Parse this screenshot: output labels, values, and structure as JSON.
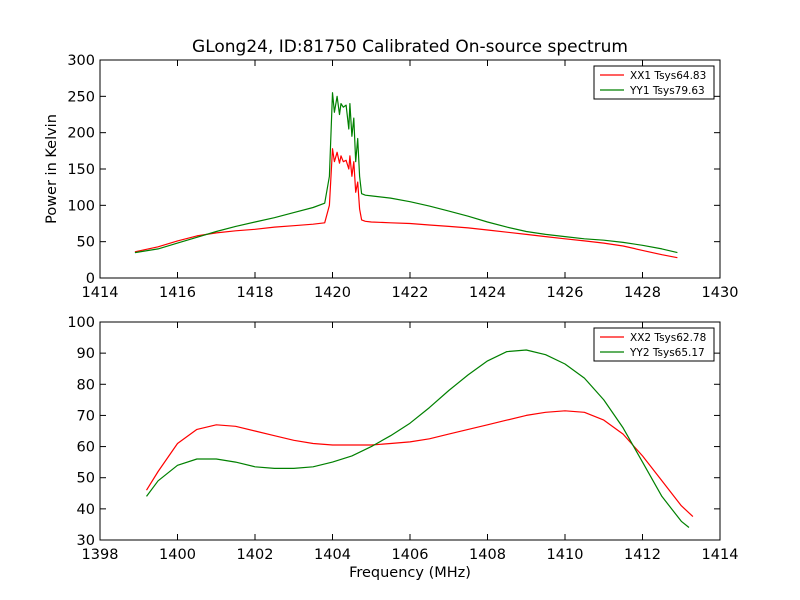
{
  "chart_data": [
    {
      "type": "line",
      "title": "GLong24, ID:81750 Calibrated On-source spectrum",
      "xlabel": "",
      "ylabel": "Power in Kelvin",
      "xlim": [
        1414,
        1430
      ],
      "ylim": [
        0,
        300
      ],
      "xticks": [
        "1414",
        "1416",
        "1418",
        "1420",
        "1422",
        "1424",
        "1426",
        "1428",
        "1430"
      ],
      "yticks": [
        "0",
        "50",
        "100",
        "150",
        "200",
        "250",
        "300"
      ],
      "legend_position": "top-right",
      "series": [
        {
          "name": "XX1 Tsys64.83",
          "color": "#ff0000",
          "x": [
            1414.9,
            1415.5,
            1416,
            1416.5,
            1417,
            1417.5,
            1418,
            1418.5,
            1419,
            1419.5,
            1419.8,
            1419.92,
            1420.0,
            1420.05,
            1420.12,
            1420.18,
            1420.22,
            1420.28,
            1420.35,
            1420.42,
            1420.45,
            1420.5,
            1420.55,
            1420.6,
            1420.65,
            1420.7,
            1420.75,
            1420.85,
            1421,
            1421.5,
            1422,
            1422.5,
            1423,
            1423.5,
            1424,
            1424.5,
            1425,
            1425.5,
            1426,
            1426.5,
            1427,
            1427.5,
            1428,
            1428.5,
            1428.9
          ],
          "y": [
            36,
            43,
            51,
            58,
            62,
            65,
            67,
            70,
            72,
            74,
            76,
            100,
            178,
            160,
            173,
            158,
            168,
            160,
            162,
            150,
            168,
            140,
            160,
            118,
            132,
            95,
            80,
            78,
            77,
            76,
            75,
            73,
            71,
            69,
            66,
            63,
            60,
            57,
            54,
            51,
            48,
            44,
            38,
            32,
            28
          ]
        },
        {
          "name": "YY1 Tsys79.63",
          "color": "#008000",
          "x": [
            1414.9,
            1415.5,
            1416,
            1416.5,
            1417,
            1417.5,
            1418,
            1418.5,
            1419,
            1419.5,
            1419.8,
            1419.92,
            1420.0,
            1420.05,
            1420.12,
            1420.18,
            1420.22,
            1420.28,
            1420.35,
            1420.42,
            1420.45,
            1420.5,
            1420.55,
            1420.6,
            1420.65,
            1420.7,
            1420.75,
            1420.85,
            1421,
            1421.5,
            1422,
            1422.5,
            1423,
            1423.5,
            1424,
            1424.5,
            1425,
            1425.5,
            1426,
            1426.5,
            1427,
            1427.5,
            1428,
            1428.5,
            1428.9
          ],
          "y": [
            35,
            40,
            48,
            56,
            64,
            71,
            77,
            83,
            90,
            97,
            103,
            140,
            255,
            228,
            250,
            225,
            240,
            235,
            238,
            205,
            240,
            195,
            220,
            160,
            192,
            140,
            116,
            114,
            113,
            110,
            105,
            99,
            92,
            85,
            77,
            70,
            64,
            60,
            57,
            54,
            52,
            49,
            45,
            40,
            35
          ]
        }
      ]
    },
    {
      "type": "line",
      "title": "",
      "xlabel": "Frequency (MHz)",
      "ylabel": "",
      "xlim": [
        1398,
        1414
      ],
      "ylim": [
        30,
        100
      ],
      "xticks": [
        "1398",
        "1400",
        "1402",
        "1404",
        "1406",
        "1408",
        "1410",
        "1412",
        "1414"
      ],
      "yticks": [
        "30",
        "40",
        "50",
        "60",
        "70",
        "80",
        "90",
        "100"
      ],
      "legend_position": "top-right",
      "series": [
        {
          "name": "XX2 Tsys62.78",
          "color": "#ff0000",
          "x": [
            1399.2,
            1399.5,
            1400,
            1400.5,
            1401,
            1401.5,
            1402,
            1402.5,
            1403,
            1403.5,
            1404,
            1404.5,
            1405,
            1405.5,
            1406,
            1406.5,
            1407,
            1407.5,
            1408,
            1408.5,
            1409,
            1409.5,
            1410,
            1410.5,
            1411,
            1411.5,
            1412,
            1412.5,
            1413,
            1413.3
          ],
          "y": [
            46,
            52,
            61,
            65.5,
            67,
            66.5,
            65,
            63.5,
            62,
            61,
            60.5,
            60.5,
            60.5,
            61,
            61.5,
            62.5,
            64,
            65.5,
            67,
            68.5,
            70,
            71,
            71.5,
            71,
            68.5,
            64,
            57,
            49,
            41,
            37.5
          ]
        },
        {
          "name": "YY2 Tsys65.17",
          "color": "#008000",
          "x": [
            1399.2,
            1399.5,
            1400,
            1400.5,
            1401,
            1401.5,
            1402,
            1402.5,
            1403,
            1403.5,
            1404,
            1404.5,
            1405,
            1405.5,
            1406,
            1406.5,
            1407,
            1407.5,
            1408,
            1408.5,
            1409,
            1409.5,
            1410,
            1410.5,
            1411,
            1411.5,
            1412,
            1412.5,
            1413,
            1413.2
          ],
          "y": [
            44,
            49,
            54,
            56,
            56,
            55,
            53.5,
            53,
            53,
            53.5,
            55,
            57,
            60,
            63.5,
            67.5,
            72.5,
            78,
            83,
            87.5,
            90.5,
            91,
            89.5,
            86.5,
            82,
            75,
            66,
            55,
            44,
            36,
            34
          ]
        }
      ]
    }
  ]
}
